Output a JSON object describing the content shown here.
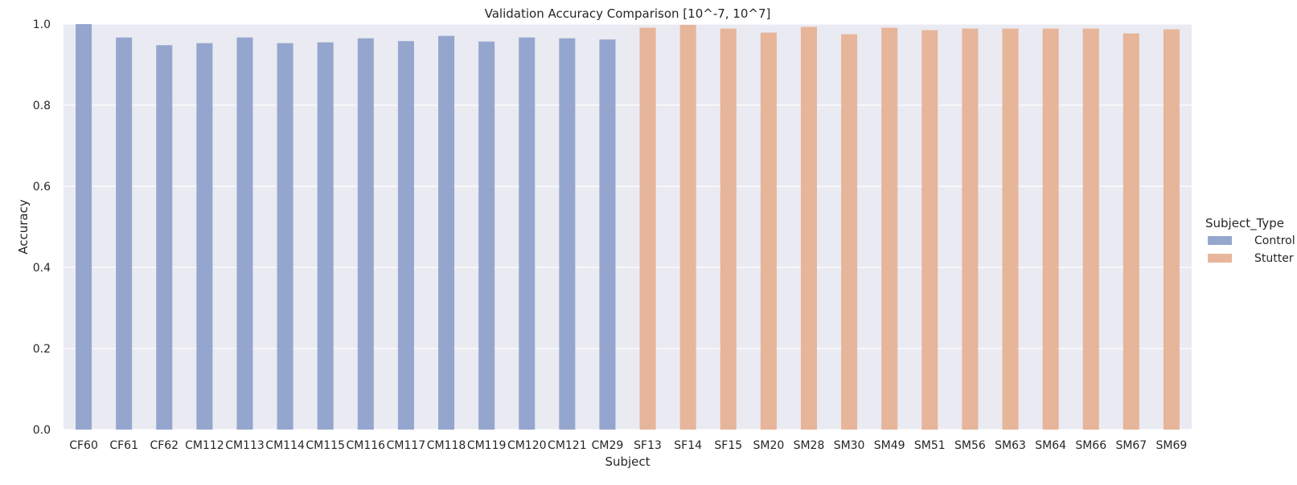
{
  "chart_data": {
    "type": "bar",
    "title": "Validation Accuracy Comparison [10^-7, 10^7]",
    "xlabel": "Subject",
    "ylabel": "Accuracy",
    "ylim": [
      0,
      1.0
    ],
    "yticks": [
      "0.0",
      "0.2",
      "0.4",
      "0.6",
      "0.8",
      "1.0"
    ],
    "ytick_values": [
      0,
      0.2,
      0.4,
      0.6,
      0.8,
      1.0
    ],
    "grid": true,
    "legend_placement": "right",
    "legend_title": "Subject_Type",
    "categories": [
      "CF60",
      "CF61",
      "CF62",
      "CM112",
      "CM113",
      "CM114",
      "CM115",
      "CM116",
      "CM117",
      "CM118",
      "CM119",
      "CM120",
      "CM121",
      "CM29",
      "SF13",
      "SF14",
      "SF15",
      "SM20",
      "SM28",
      "SM30",
      "SM49",
      "SM51",
      "SM56",
      "SM63",
      "SM64",
      "SM66",
      "SM67",
      "SM69"
    ],
    "series": [
      {
        "name": "Control",
        "color": "#8da0cb",
        "values": [
          1.0,
          0.967,
          0.948,
          0.953,
          0.967,
          0.953,
          0.955,
          0.965,
          0.958,
          0.971,
          0.957,
          0.967,
          0.965,
          0.962,
          null,
          null,
          null,
          null,
          null,
          null,
          null,
          null,
          null,
          null,
          null,
          null,
          null,
          null
        ]
      },
      {
        "name": "Stutter",
        "color": "#e5b093",
        "values": [
          null,
          null,
          null,
          null,
          null,
          null,
          null,
          null,
          null,
          null,
          null,
          null,
          null,
          null,
          0.991,
          0.998,
          0.989,
          0.979,
          0.993,
          0.975,
          0.991,
          0.985,
          0.989,
          0.989,
          0.989,
          0.989,
          0.977,
          0.987
        ]
      }
    ]
  }
}
